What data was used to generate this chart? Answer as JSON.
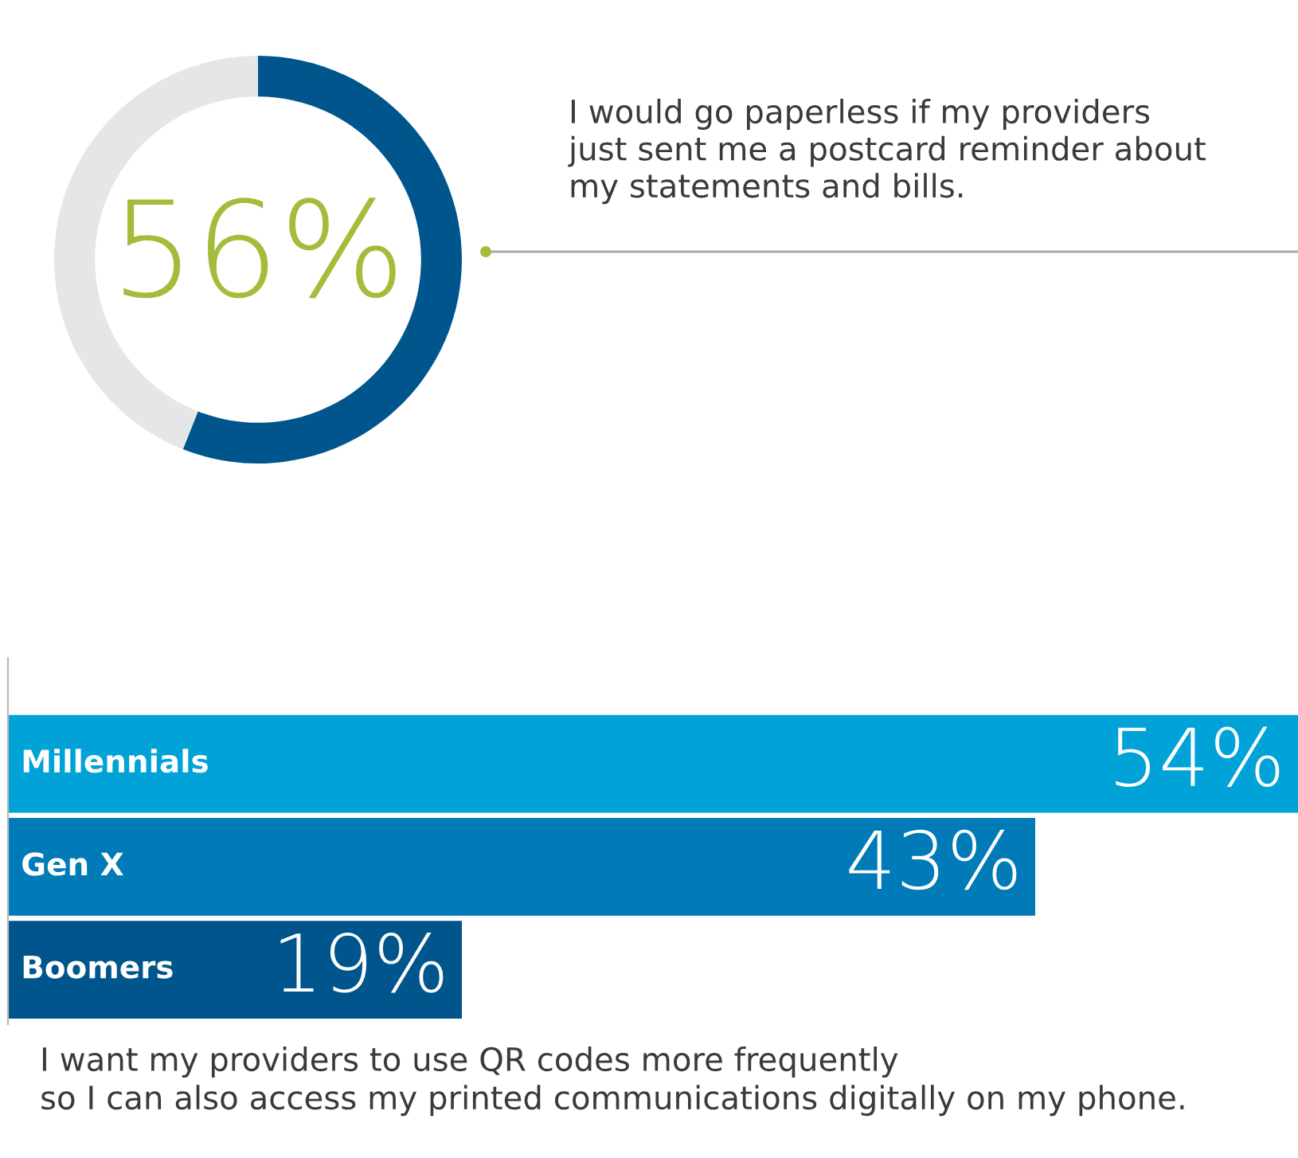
{
  "chart_data": [
    {
      "type": "donut",
      "categories": [
        null,
        null
      ],
      "values": [
        56,
        44
      ],
      "colors": [
        "#00568c",
        "#e5e6e8"
      ],
      "value_labels": [
        "56%",
        null
      ],
      "annotations": [
        "I would go paperless if my providers\njust sent me a postcard reminder about\nmy statements and bills."
      ]
    },
    {
      "type": "bar",
      "orientation": "horizontal",
      "relative": false,
      "categories": [
        "Millennials",
        "Gen X",
        "Boomers"
      ],
      "values": [
        54,
        43,
        19
      ],
      "colors": [
        "#00a2d8",
        "#007bb8",
        "#00568c"
      ],
      "value_labels": [
        "54%",
        "43%",
        "19%"
      ],
      "annotations": [
        "I want my providers to use QR codes more frequently\nso I can also access my printed communications digitally on my phone."
      ]
    }
  ]
}
